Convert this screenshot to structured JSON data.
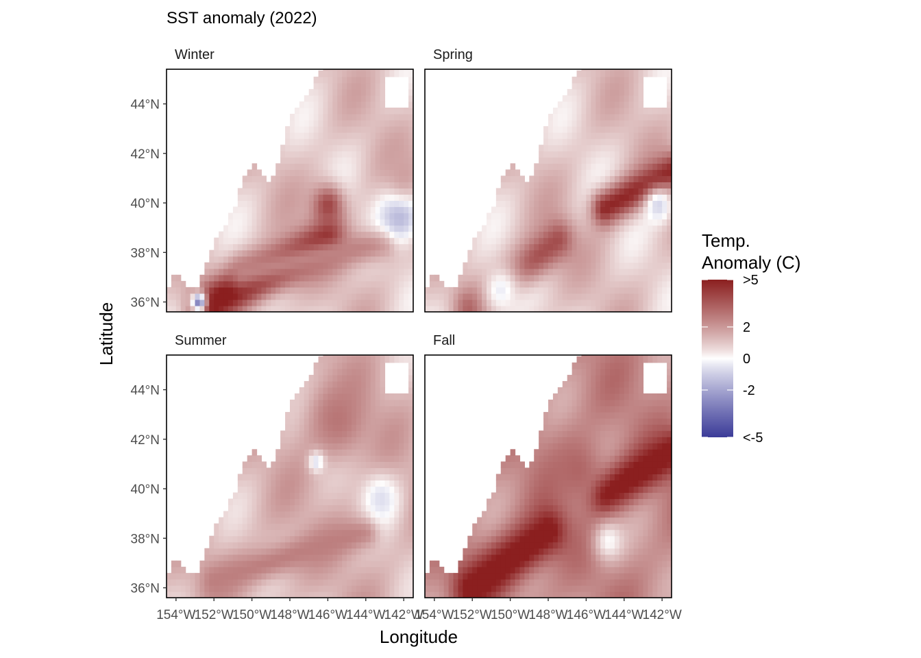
{
  "chart_data": {
    "type": "heatmap",
    "title": "SST anomaly (2022)",
    "xlabel": "Longitude",
    "ylabel": "Latitude",
    "xlim": [
      -154.5,
      -141.5
    ],
    "ylim": [
      35.6,
      45.4
    ],
    "x_ticks": [
      {
        "value": -154,
        "label": "154°W"
      },
      {
        "value": -152,
        "label": "152°W"
      },
      {
        "value": -150,
        "label": "150°W"
      },
      {
        "value": -148,
        "label": "148°W"
      },
      {
        "value": -146,
        "label": "146°W"
      },
      {
        "value": -144,
        "label": "144°W"
      },
      {
        "value": -142,
        "label": "142°W"
      }
    ],
    "y_ticks": [
      {
        "value": 36,
        "label": "36°N"
      },
      {
        "value": 38,
        "label": "38°N"
      },
      {
        "value": 40,
        "label": "40°N"
      },
      {
        "value": 42,
        "label": "42°N"
      },
      {
        "value": 44,
        "label": "44°N"
      }
    ],
    "legend": {
      "title_lines": [
        "Temp.",
        "Anomaly (C)"
      ],
      "position": "right",
      "range": [
        -5,
        5
      ],
      "breaks": [
        {
          "value": 5,
          "label": ">5"
        },
        {
          "value": 2,
          "label": "2"
        },
        {
          "value": 0,
          "label": "0"
        },
        {
          "value": -2,
          "label": "-2"
        },
        {
          "value": -5,
          "label": "<-5"
        }
      ],
      "colors": {
        "low": "#3b3b98",
        "mid": "#ffffff",
        "high": "#8b1f1f"
      }
    },
    "panels": [
      {
        "name": "Winter",
        "base": 1.0,
        "features": [
          {
            "type": "band",
            "x1": -152.5,
            "y1": 35.8,
            "x2": -146,
            "y2": 38.5,
            "width": 0.6,
            "value": 5.5
          },
          {
            "type": "band",
            "x1": -150.5,
            "y1": 37.2,
            "x2": -143,
            "y2": 38.4,
            "width": 0.5,
            "value": 2.5
          },
          {
            "type": "blob",
            "x": -146,
            "y": 39.9,
            "r": 0.6,
            "value": 4.0
          },
          {
            "type": "blob",
            "x": -142.2,
            "y": 39.6,
            "r": 0.8,
            "value": -1.8
          },
          {
            "type": "blob",
            "x": -142,
            "y": 41.2,
            "r": 0.8,
            "value": 1.8
          },
          {
            "type": "blob",
            "x": -152.8,
            "y": 36.0,
            "r": 0.3,
            "value": -3.0
          }
        ]
      },
      {
        "name": "Spring",
        "base": 1.0,
        "features": [
          {
            "type": "band",
            "x1": -152,
            "y1": 35.8,
            "x2": -147.5,
            "y2": 38.5,
            "width": 0.6,
            "value": 3.8
          },
          {
            "type": "band",
            "x1": -145,
            "y1": 39.8,
            "x2": -141.5,
            "y2": 41.3,
            "width": 0.5,
            "value": 4.8
          },
          {
            "type": "blob",
            "x": -153.6,
            "y": 37.8,
            "r": 0.3,
            "value": 5.0
          },
          {
            "type": "blob",
            "x": -142.2,
            "y": 39.9,
            "r": 0.5,
            "value": -0.8
          },
          {
            "type": "blob",
            "x": -150.5,
            "y": 36.5,
            "r": 0.9,
            "value": -0.3
          }
        ]
      },
      {
        "name": "Summer",
        "base": 1.3,
        "features": [
          {
            "type": "band",
            "x1": -152,
            "y1": 36.3,
            "x2": -144,
            "y2": 38.3,
            "width": 0.5,
            "value": 2.6
          },
          {
            "type": "blob",
            "x": -145.5,
            "y": 42.8,
            "r": 1.2,
            "value": 2.8
          },
          {
            "type": "blob",
            "x": -143.2,
            "y": 39.6,
            "r": 0.7,
            "value": -0.6
          },
          {
            "type": "blob",
            "x": -146.6,
            "y": 41.1,
            "r": 0.3,
            "value": -0.6
          }
        ]
      },
      {
        "name": "Fall",
        "base": 2.3,
        "features": [
          {
            "type": "band",
            "x1": -152,
            "y1": 36.0,
            "x2": -148,
            "y2": 38.3,
            "width": 0.7,
            "value": 5.5
          },
          {
            "type": "band",
            "x1": -145,
            "y1": 39.8,
            "x2": -141.5,
            "y2": 41.5,
            "width": 0.6,
            "value": 5.5
          },
          {
            "type": "blob",
            "x": -144.8,
            "y": 37.9,
            "r": 0.6,
            "value": 0.0
          },
          {
            "type": "blob",
            "x": -146.5,
            "y": 40.8,
            "r": 1.0,
            "value": 3.2
          }
        ]
      }
    ]
  }
}
